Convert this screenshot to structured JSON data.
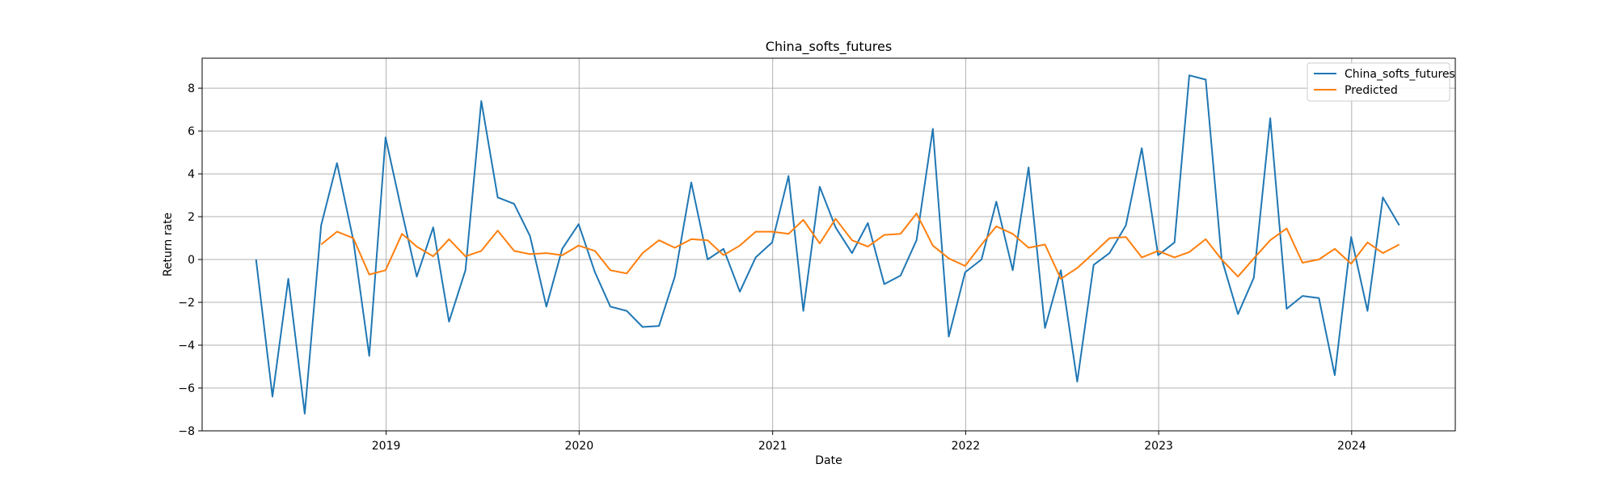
{
  "chart_data": {
    "type": "line",
    "title": "China_softs_futures",
    "xlabel": "Date",
    "ylabel": "Return rate",
    "ylim": [
      -8,
      9.4
    ],
    "xlim": [
      "2018-01-18",
      "2024-07-15"
    ],
    "yticks": [
      -8,
      -6,
      -4,
      -2,
      0,
      2,
      4,
      6,
      8
    ],
    "xticks": [
      {
        "date": "2019-01-01",
        "label": "2019"
      },
      {
        "date": "2020-01-01",
        "label": "2020"
      },
      {
        "date": "2021-01-01",
        "label": "2021"
      },
      {
        "date": "2022-01-01",
        "label": "2022"
      },
      {
        "date": "2023-01-01",
        "label": "2023"
      },
      {
        "date": "2024-01-01",
        "label": "2024"
      }
    ],
    "grid": true,
    "legend_position": "top-right",
    "series": [
      {
        "name": "China_softs_futures",
        "color": "#1f77b4",
        "x": [
          "2018-04-30",
          "2018-05-31",
          "2018-06-30",
          "2018-07-31",
          "2018-08-31",
          "2018-09-30",
          "2018-10-31",
          "2018-11-30",
          "2018-12-31",
          "2019-01-31",
          "2019-02-28",
          "2019-03-31",
          "2019-04-30",
          "2019-05-31",
          "2019-06-30",
          "2019-07-31",
          "2019-08-31",
          "2019-09-30",
          "2019-10-31",
          "2019-11-30",
          "2019-12-31",
          "2020-01-31",
          "2020-02-29",
          "2020-03-31",
          "2020-04-30",
          "2020-05-31",
          "2020-06-30",
          "2020-07-31",
          "2020-08-31",
          "2020-09-30",
          "2020-10-31",
          "2020-11-30",
          "2020-12-31",
          "2021-01-31",
          "2021-02-28",
          "2021-03-31",
          "2021-04-30",
          "2021-05-31",
          "2021-06-30",
          "2021-07-31",
          "2021-08-31",
          "2021-09-30",
          "2021-10-31",
          "2021-11-30",
          "2021-12-31",
          "2022-01-31",
          "2022-02-28",
          "2022-03-31",
          "2022-04-30",
          "2022-05-31",
          "2022-06-30",
          "2022-07-31",
          "2022-08-31",
          "2022-09-30",
          "2022-10-31",
          "2022-11-30",
          "2022-12-31",
          "2023-01-31",
          "2023-02-28",
          "2023-03-31",
          "2023-04-30",
          "2023-05-31",
          "2023-06-30",
          "2023-07-31",
          "2023-08-31",
          "2023-09-30",
          "2023-10-31",
          "2023-11-30",
          "2023-12-31",
          "2024-01-31",
          "2024-02-29",
          "2024-03-31"
        ],
        "values": [
          0.0,
          -6.4,
          -0.9,
          -7.2,
          1.6,
          4.5,
          0.9,
          -4.5,
          5.7,
          2.2,
          -0.8,
          1.5,
          -2.9,
          -0.5,
          7.4,
          2.9,
          2.6,
          1.1,
          -2.2,
          0.5,
          1.65,
          -0.6,
          -2.2,
          -2.4,
          -3.15,
          -3.1,
          -0.8,
          3.6,
          0.0,
          0.5,
          -1.5,
          0.1,
          0.8,
          3.9,
          -2.4,
          3.4,
          1.5,
          0.3,
          1.7,
          -1.15,
          -0.75,
          0.9,
          6.1,
          -3.6,
          -0.6,
          0.0,
          2.7,
          -0.5,
          4.3,
          -3.2,
          -0.5,
          -5.7,
          -0.25,
          0.3,
          1.6,
          5.2,
          0.2,
          0.8,
          8.6,
          8.4,
          0.05,
          -2.55,
          -0.85,
          6.6,
          -2.3,
          -1.7,
          -1.8,
          -5.4,
          1.05,
          -2.4,
          2.9,
          1.6
        ]
      },
      {
        "name": "Predicted",
        "color": "#ff7f0e",
        "x": [
          "2018-08-31",
          "2018-09-30",
          "2018-10-31",
          "2018-11-30",
          "2018-12-31",
          "2019-01-31",
          "2019-02-28",
          "2019-03-31",
          "2019-04-30",
          "2019-05-31",
          "2019-06-30",
          "2019-07-31",
          "2019-08-31",
          "2019-09-30",
          "2019-10-31",
          "2019-11-30",
          "2019-12-31",
          "2020-01-31",
          "2020-02-29",
          "2020-03-31",
          "2020-04-30",
          "2020-05-31",
          "2020-06-30",
          "2020-07-31",
          "2020-08-31",
          "2020-09-30",
          "2020-10-31",
          "2020-11-30",
          "2020-12-31",
          "2021-01-31",
          "2021-02-28",
          "2021-03-31",
          "2021-04-30",
          "2021-05-31",
          "2021-06-30",
          "2021-07-31",
          "2021-08-31",
          "2021-09-30",
          "2021-10-31",
          "2021-11-30",
          "2021-12-31",
          "2022-01-31",
          "2022-02-28",
          "2022-03-31",
          "2022-04-30",
          "2022-05-31",
          "2022-06-30",
          "2022-07-31",
          "2022-08-31",
          "2022-09-30",
          "2022-10-31",
          "2022-11-30",
          "2022-12-31",
          "2023-01-31",
          "2023-02-28",
          "2023-03-31",
          "2023-04-30",
          "2023-05-31",
          "2023-06-30",
          "2023-07-31",
          "2023-08-31",
          "2023-09-30",
          "2023-10-31",
          "2023-11-30",
          "2023-12-31",
          "2024-01-31",
          "2024-02-29",
          "2024-03-31"
        ],
        "values": [
          0.7,
          1.3,
          1.0,
          -0.7,
          -0.5,
          1.2,
          0.6,
          0.15,
          0.95,
          0.15,
          0.4,
          1.35,
          0.4,
          0.25,
          0.3,
          0.2,
          0.65,
          0.4,
          -0.5,
          -0.65,
          0.3,
          0.9,
          0.55,
          0.95,
          0.9,
          0.2,
          0.65,
          1.3,
          1.3,
          1.2,
          1.85,
          0.75,
          1.9,
          0.9,
          0.6,
          1.15,
          1.2,
          2.15,
          0.65,
          0.05,
          -0.3,
          0.7,
          1.55,
          1.2,
          0.55,
          0.7,
          -0.9,
          -0.4,
          0.3,
          1.0,
          1.05,
          0.1,
          0.4,
          0.1,
          0.35,
          0.95,
          0.0,
          -0.8,
          0.05,
          0.9,
          1.45,
          -0.15,
          0.0,
          0.5,
          -0.2,
          0.8,
          0.3,
          0.7
        ]
      }
    ]
  }
}
